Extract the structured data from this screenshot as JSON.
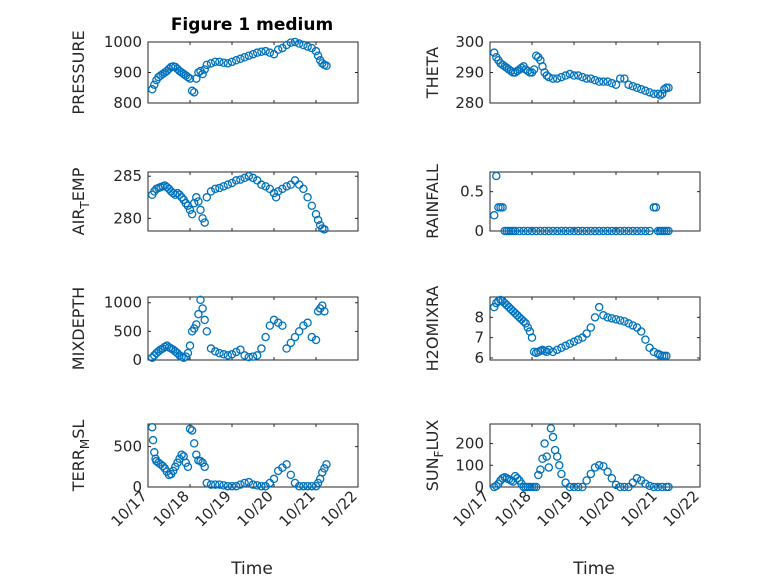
{
  "figure": {
    "title": "Figure 1 medium",
    "marker_color": "#0072bd"
  },
  "chart_data": [
    {
      "type": "scatter",
      "ylabel": "PRESSURE",
      "title": "Figure 1 medium",
      "ylim": [
        800,
        1000
      ],
      "yticks": [
        800,
        900,
        1000
      ],
      "xlim": [
        17,
        22
      ],
      "grid": true,
      "x": [
        17.1,
        17.15,
        17.2,
        17.25,
        17.3,
        17.35,
        17.4,
        17.45,
        17.5,
        17.55,
        17.6,
        17.65,
        17.7,
        17.75,
        17.8,
        17.85,
        17.9,
        17.95,
        18.0,
        18.05,
        18.1,
        18.15,
        18.2,
        18.25,
        18.3,
        18.35,
        18.4,
        18.5,
        18.6,
        18.7,
        18.8,
        18.9,
        19.0,
        19.1,
        19.2,
        19.3,
        19.4,
        19.5,
        19.6,
        19.7,
        19.8,
        19.9,
        20.0,
        20.1,
        20.2,
        20.3,
        20.4,
        20.5,
        20.6,
        20.7,
        20.8,
        20.9,
        21.0,
        21.05,
        21.1,
        21.15,
        21.2,
        21.25
      ],
      "y": [
        845,
        860,
        875,
        885,
        890,
        895,
        900,
        905,
        912,
        918,
        920,
        918,
        912,
        905,
        900,
        895,
        890,
        885,
        880,
        840,
        835,
        880,
        900,
        905,
        895,
        910,
        925,
        930,
        935,
        935,
        932,
        930,
        935,
        940,
        945,
        950,
        955,
        960,
        965,
        968,
        970,
        965,
        960,
        975,
        980,
        990,
        998,
        1000,
        995,
        990,
        985,
        980,
        970,
        955,
        940,
        930,
        925,
        922
      ],
      "y_label_text": ""
    },
    {
      "type": "scatter",
      "ylabel": "THETA",
      "ylim": [
        280,
        300
      ],
      "yticks": [
        280,
        290,
        300
      ],
      "xlim": [
        17,
        22
      ],
      "grid": true,
      "x": [
        17.1,
        17.15,
        17.2,
        17.25,
        17.3,
        17.35,
        17.4,
        17.45,
        17.5,
        17.55,
        17.6,
        17.65,
        17.7,
        17.75,
        17.8,
        17.85,
        17.9,
        17.95,
        18.0,
        18.05,
        18.1,
        18.15,
        18.2,
        18.25,
        18.3,
        18.35,
        18.4,
        18.5,
        18.6,
        18.7,
        18.8,
        18.9,
        19.0,
        19.1,
        19.2,
        19.3,
        19.4,
        19.5,
        19.6,
        19.7,
        19.8,
        19.9,
        20.0,
        20.1,
        20.2,
        20.3,
        20.4,
        20.5,
        20.6,
        20.7,
        20.8,
        20.9,
        21.0,
        21.05,
        21.1,
        21.15,
        21.2,
        21.25
      ],
      "y": [
        296.5,
        295,
        294,
        293,
        292.5,
        292,
        291.5,
        291,
        290.5,
        290,
        290,
        290.5,
        291,
        291.5,
        292,
        291,
        290.5,
        290,
        290,
        291,
        295.5,
        295,
        294,
        292,
        290,
        289,
        288.5,
        288,
        288,
        288.5,
        289,
        289.5,
        289,
        289,
        288.5,
        288,
        288,
        287.5,
        287,
        287,
        287,
        286.5,
        286,
        288,
        288,
        286,
        285.5,
        285,
        284.5,
        284,
        283.5,
        283,
        283,
        282.5,
        283,
        284.5,
        285,
        285
      ]
    },
    {
      "type": "scatter",
      "ylabel": "AIR_TEMP",
      "ylabel_main": "AIR",
      "ylabel_sub": "T",
      "ylabel_rest": "EMP",
      "ylim": [
        278.5,
        285.5
      ],
      "yticks": [
        280,
        285
      ],
      "xlim": [
        17,
        22
      ],
      "grid": true,
      "x": [
        17.1,
        17.15,
        17.2,
        17.25,
        17.3,
        17.35,
        17.4,
        17.45,
        17.5,
        17.55,
        17.6,
        17.65,
        17.7,
        17.75,
        17.8,
        17.85,
        17.9,
        17.95,
        18.0,
        18.05,
        18.1,
        18.15,
        18.2,
        18.25,
        18.3,
        18.35,
        18.4,
        18.5,
        18.6,
        18.7,
        18.8,
        18.9,
        19.0,
        19.1,
        19.2,
        19.3,
        19.4,
        19.5,
        19.6,
        19.7,
        19.8,
        19.9,
        20.0,
        20.05,
        20.1,
        20.2,
        20.3,
        20.4,
        20.5,
        20.6,
        20.7,
        20.8,
        20.9,
        21.0,
        21.05,
        21.1,
        21.15,
        21.2
      ],
      "y": [
        282.8,
        283.2,
        283.5,
        283.6,
        283.7,
        283.8,
        283.9,
        283.7,
        283.5,
        283.2,
        283.0,
        282.8,
        283.0,
        282.8,
        282.5,
        282.2,
        281.8,
        281.5,
        281.0,
        280.5,
        281.8,
        282.5,
        282.0,
        281.0,
        280.0,
        279.5,
        282.5,
        283.2,
        283.5,
        283.6,
        283.8,
        284.0,
        284.2,
        284.5,
        284.6,
        284.8,
        285.0,
        284.8,
        284.5,
        284.0,
        283.8,
        283.5,
        283.0,
        282.5,
        283.2,
        283.5,
        283.8,
        284.0,
        284.5,
        284.0,
        283.5,
        282.5,
        281.5,
        280.5,
        279.8,
        279.2,
        278.8,
        278.7
      ]
    },
    {
      "type": "scatter",
      "ylabel": "RAINFALL",
      "ylim": [
        0,
        0.75
      ],
      "yticks": [
        0,
        0.5
      ],
      "xlim": [
        17,
        22
      ],
      "grid": true,
      "x": [
        17.1,
        17.15,
        17.2,
        17.25,
        17.3,
        17.35,
        17.4,
        17.45,
        17.5,
        17.55,
        17.6,
        17.7,
        17.8,
        17.9,
        18.0,
        18.1,
        18.2,
        18.3,
        18.4,
        18.5,
        18.6,
        18.7,
        18.8,
        18.9,
        19.0,
        19.1,
        19.2,
        19.3,
        19.4,
        19.5,
        19.6,
        19.7,
        19.8,
        19.9,
        20.0,
        20.1,
        20.2,
        20.3,
        20.4,
        20.5,
        20.6,
        20.7,
        20.8,
        20.9,
        20.95,
        21.0,
        21.05,
        21.1,
        21.15,
        21.2,
        21.25
      ],
      "y": [
        0.2,
        0.7,
        0.3,
        0.3,
        0.3,
        0.0,
        0,
        0,
        0,
        0,
        0,
        0,
        0,
        0,
        0,
        0,
        0,
        0,
        0,
        0,
        0,
        0,
        0,
        0,
        0,
        0,
        0,
        0,
        0,
        0,
        0,
        0,
        0,
        0,
        0,
        0,
        0,
        0,
        0,
        0,
        0,
        0,
        0,
        0.3,
        0.3,
        0,
        0,
        0,
        0,
        0,
        0
      ]
    },
    {
      "type": "scatter",
      "ylabel": "MIXDEPTH",
      "ylim": [
        0,
        1100
      ],
      "yticks": [
        0,
        500,
        1000
      ],
      "xlim": [
        17,
        22
      ],
      "grid": true,
      "x": [
        17.1,
        17.15,
        17.2,
        17.25,
        17.3,
        17.35,
        17.4,
        17.45,
        17.5,
        17.55,
        17.6,
        17.65,
        17.7,
        17.75,
        17.8,
        17.85,
        17.9,
        17.95,
        18.0,
        18.05,
        18.1,
        18.15,
        18.2,
        18.25,
        18.3,
        18.35,
        18.4,
        18.5,
        18.6,
        18.7,
        18.8,
        18.9,
        19.0,
        19.1,
        19.2,
        19.3,
        19.4,
        19.5,
        19.6,
        19.7,
        19.8,
        19.9,
        20.0,
        20.1,
        20.2,
        20.3,
        20.4,
        20.5,
        20.6,
        20.7,
        20.8,
        20.9,
        21.0,
        21.05,
        21.1,
        21.15,
        21.2
      ],
      "y": [
        40,
        80,
        120,
        150,
        180,
        200,
        230,
        250,
        220,
        200,
        180,
        150,
        120,
        80,
        60,
        40,
        60,
        120,
        250,
        500,
        550,
        620,
        800,
        1050,
        900,
        700,
        500,
        200,
        150,
        120,
        100,
        80,
        100,
        140,
        180,
        80,
        50,
        60,
        80,
        200,
        400,
        600,
        700,
        650,
        600,
        200,
        300,
        400,
        500,
        600,
        650,
        400,
        350,
        850,
        900,
        950,
        850
      ]
    },
    {
      "type": "scatter",
      "ylabel": "H2OMIXRA",
      "ylim": [
        5.9,
        9.0
      ],
      "yticks": [
        6,
        7,
        8
      ],
      "xlim": [
        17,
        22
      ],
      "grid": true,
      "x": [
        17.1,
        17.15,
        17.2,
        17.25,
        17.3,
        17.35,
        17.4,
        17.45,
        17.5,
        17.55,
        17.6,
        17.65,
        17.7,
        17.75,
        17.8,
        17.85,
        17.9,
        17.95,
        18.0,
        18.05,
        18.1,
        18.15,
        18.2,
        18.25,
        18.3,
        18.35,
        18.4,
        18.5,
        18.6,
        18.7,
        18.8,
        18.9,
        19.0,
        19.1,
        19.2,
        19.3,
        19.4,
        19.5,
        19.6,
        19.7,
        19.8,
        19.9,
        20.0,
        20.1,
        20.2,
        20.3,
        20.4,
        20.5,
        20.6,
        20.7,
        20.8,
        20.9,
        21.0,
        21.05,
        21.1,
        21.15,
        21.2
      ],
      "y": [
        8.5,
        8.7,
        8.8,
        8.85,
        8.8,
        8.7,
        8.6,
        8.5,
        8.4,
        8.3,
        8.2,
        8.1,
        8.0,
        7.9,
        7.8,
        7.7,
        7.5,
        7.3,
        7.0,
        6.3,
        6.25,
        6.3,
        6.35,
        6.4,
        6.35,
        6.3,
        6.4,
        6.3,
        6.4,
        6.5,
        6.6,
        6.7,
        6.8,
        6.9,
        7.0,
        7.2,
        7.5,
        8.0,
        8.5,
        8.1,
        8.0,
        7.95,
        7.9,
        7.85,
        7.8,
        7.7,
        7.6,
        7.5,
        7.3,
        6.9,
        6.5,
        6.3,
        6.2,
        6.15,
        6.1,
        6.1,
        6.1
      ]
    },
    {
      "type": "scatter",
      "ylabel": "TERR_MSL",
      "ylabel_main": "TERR",
      "ylabel_sub": "M",
      "ylabel_rest": "SL",
      "ylim": [
        0,
        780
      ],
      "yticks": [
        0,
        500
      ],
      "xlim": [
        17,
        22
      ],
      "grid": true,
      "x": [
        17.1,
        17.12,
        17.15,
        17.18,
        17.2,
        17.25,
        17.3,
        17.35,
        17.4,
        17.45,
        17.5,
        17.55,
        17.6,
        17.65,
        17.7,
        17.75,
        17.8,
        17.85,
        17.9,
        17.95,
        18.0,
        18.05,
        18.1,
        18.15,
        18.2,
        18.25,
        18.3,
        18.35,
        18.4,
        18.5,
        18.6,
        18.7,
        18.8,
        18.9,
        19.0,
        19.1,
        19.2,
        19.3,
        19.4,
        19.5,
        19.6,
        19.7,
        19.8,
        19.9,
        20.0,
        20.1,
        20.2,
        20.3,
        20.4,
        20.5,
        20.6,
        20.7,
        20.8,
        20.9,
        21.0,
        21.05,
        21.1,
        21.15,
        21.2,
        21.25
      ],
      "y": [
        740,
        580,
        430,
        350,
        320,
        300,
        280,
        260,
        230,
        190,
        150,
        160,
        200,
        250,
        300,
        350,
        400,
        380,
        300,
        250,
        720,
        700,
        540,
        400,
        330,
        320,
        300,
        250,
        50,
        30,
        30,
        30,
        20,
        10,
        10,
        10,
        30,
        50,
        60,
        30,
        20,
        10,
        10,
        50,
        100,
        200,
        240,
        280,
        150,
        50,
        10,
        10,
        10,
        10,
        10,
        50,
        100,
        180,
        230,
        280
      ]
    },
    {
      "type": "scatter",
      "ylabel": "SUN_FLUX",
      "ylabel_main": "SUN",
      "ylabel_sub": "F",
      "ylabel_rest": "LUX",
      "ylim": [
        0,
        290
      ],
      "yticks": [
        0,
        100,
        200
      ],
      "xlim": [
        17,
        22
      ],
      "grid": true,
      "x": [
        17.1,
        17.15,
        17.2,
        17.25,
        17.3,
        17.35,
        17.4,
        17.45,
        17.5,
        17.55,
        17.6,
        17.65,
        17.7,
        17.75,
        17.8,
        17.85,
        17.9,
        17.95,
        18.0,
        18.05,
        18.1,
        18.15,
        18.2,
        18.25,
        18.3,
        18.35,
        18.4,
        18.45,
        18.5,
        18.55,
        18.6,
        18.65,
        18.7,
        18.8,
        18.9,
        19.0,
        19.1,
        19.2,
        19.3,
        19.4,
        19.5,
        19.6,
        19.7,
        19.8,
        19.9,
        20.0,
        20.1,
        20.2,
        20.3,
        20.4,
        20.5,
        20.6,
        20.7,
        20.8,
        20.9,
        21.0,
        21.1,
        21.2,
        21.25
      ],
      "y": [
        0,
        5,
        15,
        30,
        40,
        45,
        40,
        35,
        30,
        25,
        50,
        40,
        30,
        15,
        0,
        0,
        0,
        0,
        0,
        0,
        0,
        55,
        80,
        130,
        200,
        140,
        90,
        270,
        230,
        170,
        140,
        100,
        60,
        20,
        0,
        0,
        0,
        0,
        30,
        60,
        90,
        100,
        95,
        70,
        40,
        10,
        0,
        0,
        0,
        20,
        40,
        30,
        15,
        5,
        0,
        0,
        0,
        0,
        0
      ]
    }
  ],
  "x_axis": {
    "tick_labels": [
      "10/17",
      "10/18",
      "10/19",
      "10/20",
      "10/21",
      "10/22"
    ],
    "label": "Time"
  }
}
